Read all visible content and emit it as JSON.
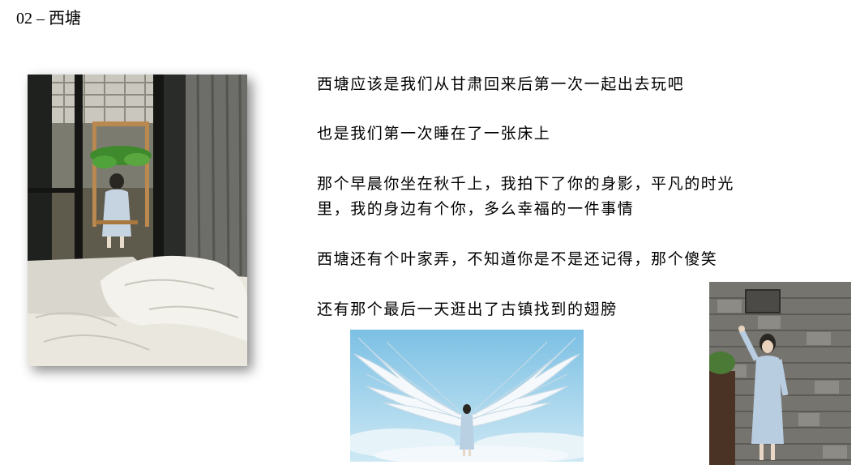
{
  "slide": {
    "title": "02 – 西塘"
  },
  "text": {
    "p1": "西塘应该是我们从甘肃回来后第一次一起出去玩吧",
    "p2": "也是我们第一次睡在了一张床上",
    "p3_line1": "那个早晨你坐在秋千上，我拍下了你的身影，平凡的时光",
    "p3_line2": "里，我的身边有个你，多么幸福的一件事情",
    "p4": "西塘还有个叶家弄，不知道你是不是还记得，那个傻笑",
    "p5": "还有那个最后一天逛出了古镇找到的翅膀"
  },
  "colors": {
    "sky": "#a8d8ef",
    "bedsheet": "#eceae2",
    "brick": "#6f6e6a",
    "dress": "#b8cde0"
  }
}
